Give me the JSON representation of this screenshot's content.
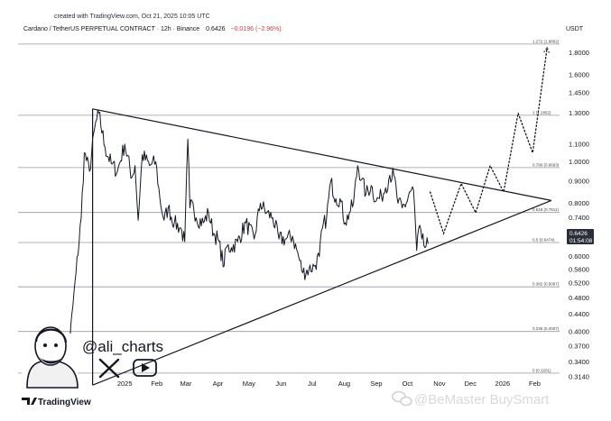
{
  "header": {
    "created_text": "created with TradingView.com, Oct 21, 2025 10:05 UTC",
    "title": "Cardano / TetherUS PERPETUAL CONTRACT · 12h · Binance",
    "price": "0.6426",
    "change": "−0.0196 (−2.96%)"
  },
  "currency": "USDT",
  "price_tag": {
    "price": "0.6426",
    "countdown": "01:54:08",
    "color": "#2a2e39"
  },
  "branding": {
    "handle": "@ali_charts",
    "tradingview_logo": "TradingView",
    "watermark": "@BeMaster BuySmart",
    "icons": [
      "avatar-illustration",
      "x-icon",
      "youtube-icon",
      "tradingview-logo-icon",
      "wechat-icon"
    ]
  },
  "chart_data": {
    "type": "line",
    "title": "Cardano / TetherUS PERPETUAL CONTRACT · 12h · Binance",
    "xlabel": "",
    "ylabel": "",
    "y_scale": "log",
    "ylim": [
      0.296,
      1.97
    ],
    "xlim": [
      "2024-09-20",
      "2026-02-25"
    ],
    "x_ticks": [
      {
        "label": "2025",
        "date": "2025-01-01"
      },
      {
        "label": "Feb",
        "date": "2025-02-01"
      },
      {
        "label": "Mar",
        "date": "2025-03-01"
      },
      {
        "label": "Apr",
        "date": "2025-04-01"
      },
      {
        "label": "May",
        "date": "2025-05-01"
      },
      {
        "label": "Jun",
        "date": "2025-06-01"
      },
      {
        "label": "Jul",
        "date": "2025-07-01"
      },
      {
        "label": "Aug",
        "date": "2025-08-01"
      },
      {
        "label": "Sep",
        "date": "2025-09-01"
      },
      {
        "label": "Oct",
        "date": "2025-10-01"
      },
      {
        "label": "Nov",
        "date": "2025-11-01"
      },
      {
        "label": "Dec",
        "date": "2025-12-01"
      },
      {
        "label": "2026",
        "date": "2026-01-01"
      },
      {
        "label": "Feb",
        "date": "2026-02-01"
      }
    ],
    "y_ticks": [
      "0.3140",
      "0.3400",
      "0.3700",
      "0.4000",
      "0.4400",
      "0.4800",
      "0.5200",
      "0.5600",
      "0.6000",
      "0.6800",
      "0.7400",
      "0.8000",
      "0.9000",
      "1.0000",
      "1.1000",
      "1.3000",
      "1.4500",
      "1.6000",
      "1.8000"
    ],
    "fib_levels": [
      {
        "label": "0 (0.3201)",
        "value": 0.3201
      },
      {
        "label": "0.236 (0.4007)",
        "value": 0.4007
      },
      {
        "label": "0.382 (0.5097)",
        "value": 0.5097
      },
      {
        "label": "0.5 (0.6474)",
        "value": 0.6474
      },
      {
        "label": "0.618 (0.7611)",
        "value": 0.7611
      },
      {
        "label": "0.786 (0.9693)",
        "value": 0.9693
      },
      {
        "label": "1 (1.2852)",
        "value": 1.2852
      },
      {
        "label": "1.272 (1.8862)",
        "value": 1.8862
      }
    ],
    "triangle": {
      "upper_line": [
        {
          "date": "2024-12-01",
          "value": 1.33
        },
        {
          "date": "2026-02-17",
          "value": 0.812
        }
      ],
      "lower_line": [
        {
          "date": "2024-12-01",
          "value": 0.3
        },
        {
          "date": "2026-02-17",
          "value": 0.812
        }
      ],
      "left_edge": [
        {
          "date": "2024-12-01",
          "value": 1.33
        },
        {
          "date": "2024-12-01",
          "value": 0.3
        }
      ]
    },
    "series": [
      {
        "color": "#131722",
        "points": [
          [
            "2024-11-01",
            0.33
          ],
          [
            "2024-11-08",
            0.36
          ],
          [
            "2024-11-15",
            0.55
          ],
          [
            "2024-11-20",
            0.74
          ],
          [
            "2024-11-23",
            1.05
          ],
          [
            "2024-11-28",
            0.95
          ],
          [
            "2024-12-03",
            1.2
          ],
          [
            "2024-12-07",
            1.3
          ],
          [
            "2024-12-13",
            1.08
          ],
          [
            "2024-12-19",
            0.99
          ],
          [
            "2024-12-25",
            0.95
          ],
          [
            "2025-01-01",
            1.1
          ],
          [
            "2025-01-08",
            0.92
          ],
          [
            "2025-01-11",
            0.98
          ],
          [
            "2025-01-14",
            0.73
          ],
          [
            "2025-01-18",
            1.04
          ],
          [
            "2025-01-25",
            0.98
          ],
          [
            "2025-01-31",
            1.0
          ],
          [
            "2025-02-04",
            0.82
          ],
          [
            "2025-02-08",
            0.73
          ],
          [
            "2025-02-12",
            0.78
          ],
          [
            "2025-02-18",
            0.72
          ],
          [
            "2025-02-24",
            0.7
          ],
          [
            "2025-02-28",
            0.65
          ],
          [
            "2025-03-03",
            1.13
          ],
          [
            "2025-03-05",
            0.78
          ],
          [
            "2025-03-08",
            0.8
          ],
          [
            "2025-03-11",
            0.74
          ],
          [
            "2025-03-18",
            0.72
          ],
          [
            "2025-03-23",
            0.76
          ],
          [
            "2025-03-28",
            0.68
          ],
          [
            "2025-04-01",
            0.66
          ],
          [
            "2025-04-07",
            0.57
          ],
          [
            "2025-04-09",
            0.63
          ],
          [
            "2025-04-14",
            0.63
          ],
          [
            "2025-04-20",
            0.65
          ],
          [
            "2025-04-28",
            0.72
          ],
          [
            "2025-05-06",
            0.66
          ],
          [
            "2025-05-12",
            0.8
          ],
          [
            "2025-05-18",
            0.76
          ],
          [
            "2025-05-24",
            0.74
          ],
          [
            "2025-05-30",
            0.66
          ],
          [
            "2025-06-06",
            0.66
          ],
          [
            "2025-06-12",
            0.67
          ],
          [
            "2025-06-18",
            0.6
          ],
          [
            "2025-06-22",
            0.55
          ],
          [
            "2025-06-28",
            0.56
          ],
          [
            "2025-07-03",
            0.57
          ],
          [
            "2025-07-08",
            0.6
          ],
          [
            "2025-07-11",
            0.7
          ],
          [
            "2025-07-15",
            0.74
          ],
          [
            "2025-07-19",
            0.9
          ],
          [
            "2025-07-24",
            0.82
          ],
          [
            "2025-07-28",
            0.82
          ],
          [
            "2025-08-02",
            0.72
          ],
          [
            "2025-08-06",
            0.76
          ],
          [
            "2025-08-10",
            0.8
          ],
          [
            "2025-08-14",
            0.98
          ],
          [
            "2025-08-18",
            0.91
          ],
          [
            "2025-08-22",
            0.84
          ],
          [
            "2025-08-27",
            0.88
          ],
          [
            "2025-09-01",
            0.81
          ],
          [
            "2025-09-06",
            0.83
          ],
          [
            "2025-09-10",
            0.87
          ],
          [
            "2025-09-14",
            0.93
          ],
          [
            "2025-09-18",
            0.93
          ],
          [
            "2025-09-22",
            0.8
          ],
          [
            "2025-09-26",
            0.78
          ],
          [
            "2025-09-30",
            0.8
          ],
          [
            "2025-10-03",
            0.85
          ],
          [
            "2025-10-07",
            0.86
          ],
          [
            "2025-10-10",
            0.62
          ],
          [
            "2025-10-12",
            0.7
          ],
          [
            "2025-10-15",
            0.66
          ],
          [
            "2025-10-18",
            0.63
          ],
          [
            "2025-10-21",
            0.6426
          ]
        ]
      }
    ],
    "projection": {
      "style": "dotted",
      "points": [
        [
          "2025-10-23",
          0.85
        ],
        [
          "2025-11-05",
          0.68
        ],
        [
          "2025-11-22",
          0.89
        ],
        [
          "2025-12-06",
          0.76
        ],
        [
          "2025-12-20",
          0.98
        ],
        [
          "2026-01-02",
          0.85
        ],
        [
          "2026-01-16",
          1.3
        ],
        [
          "2026-01-30",
          1.05
        ],
        [
          "2026-02-13",
          1.85
        ]
      ]
    },
    "grid": false,
    "legend": "none"
  }
}
